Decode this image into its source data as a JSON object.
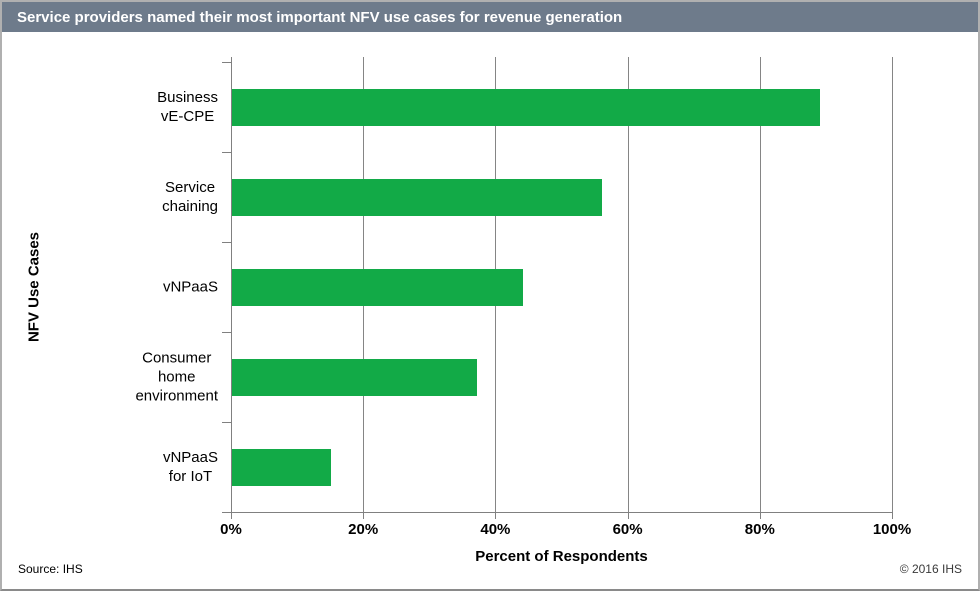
{
  "chart_data": {
    "type": "bar",
    "orientation": "horizontal",
    "title": "Service providers named their most important NFV use cases for revenue generation",
    "categories": [
      "Business vE-CPE",
      "Service chaining",
      "vNPaaS",
      "Consumer home\nenvironment",
      "vNPaaS for IoT"
    ],
    "values": [
      89,
      56,
      44,
      37,
      15
    ],
    "xlabel": "Percent of Respondents",
    "ylabel": "NFV Use Cases",
    "xlim": [
      0,
      100
    ],
    "xtick_labels": [
      "0%",
      "20%",
      "40%",
      "60%",
      "80%",
      "100%"
    ],
    "grid": "vertical-major",
    "legend": "none",
    "bar_color": "#12AA47",
    "title_bar_color": "#6E7B8B",
    "axis_color": "#808080",
    "source": "Source: IHS",
    "copyright": "© 2016 IHS"
  }
}
